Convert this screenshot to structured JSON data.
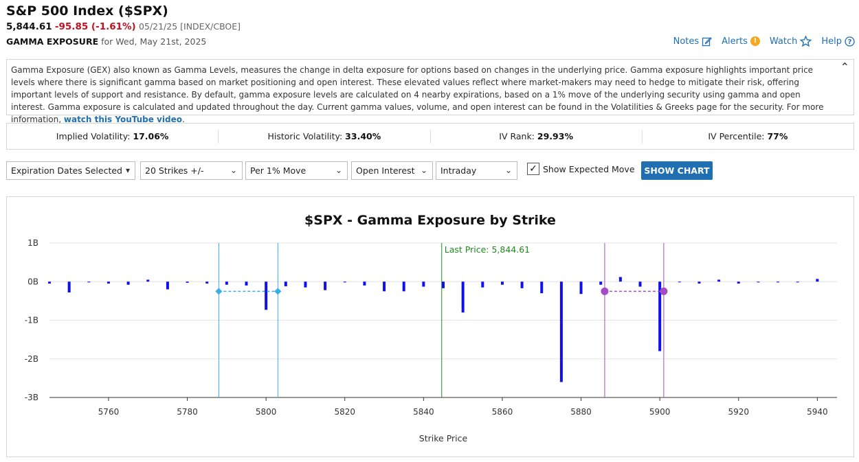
{
  "header": {
    "title": "S&P 500 Index ($SPX)",
    "last": "5,844.61",
    "change": "-95.85 (-1.61%)",
    "meta": "05/21/25 [INDEX/CBOE]",
    "section": "GAMMA EXPOSURE",
    "section_date": "for Wed, May 21st, 2025"
  },
  "links": {
    "notes": "Notes",
    "alerts": "Alerts",
    "watch": "Watch",
    "help": "Help"
  },
  "description": {
    "text": "Gamma Exposure (GEX) also known as Gamma Levels, measures the change in delta exposure for options based on changes in the underlying price. Gamma exposure highlights important price levels where there is significant gamma based on market positioning and open interest. These elevated values reflect where market-makers may need to hedge to mitigate their risk, offering important levels of support and resistance. By default, gamma exposure levels are calculated on 4 nearby expirations, based on a 1% move of the underlying security using gamma and open interest. Gamma exposure is calculated and updated throughout the day. Current gamma values, volume, and open interest can be found in the Volatilities & Greeks page for the security. For more information, ",
    "link": "watch this YouTube video",
    "end": "."
  },
  "stats": {
    "iv_label": "Implied Volatility:",
    "iv": "17.06%",
    "hv_label": "Historic Volatility:",
    "hv": "33.40%",
    "ivr_label": "IV Rank:",
    "ivr": "29.93%",
    "ivp_label": "IV Percentile:",
    "ivp": "77%"
  },
  "controls": {
    "expirations": "Expiration Dates Selected",
    "strikes": "20 Strikes +/-",
    "move": "Per 1% Move",
    "metric": "Open Interest",
    "period": "Intraday",
    "expected_move_label": "Show Expected Move",
    "expected_move_checked": true,
    "show_chart": "SHOW CHART"
  },
  "chart_data": {
    "type": "bar",
    "title": "$SPX - Gamma Exposure by Strike",
    "xlabel": "Strike Price",
    "ylabel": "",
    "xlim": [
      5745,
      5945
    ],
    "ylim": [
      -3,
      1
    ],
    "y_unit": "B",
    "x_ticks": [
      5760,
      5780,
      5800,
      5820,
      5840,
      5860,
      5880,
      5900,
      5920,
      5940
    ],
    "y_ticks": [
      "1B",
      "0B",
      "-1B",
      "-2B",
      "-3B"
    ],
    "y_tick_values": [
      1,
      0,
      -1,
      -2,
      -3
    ],
    "grid": true,
    "bar_color": "#1010ee",
    "strikes": [
      5745,
      5750,
      5755,
      5760,
      5765,
      5770,
      5775,
      5780,
      5785,
      5790,
      5795,
      5800,
      5805,
      5810,
      5815,
      5820,
      5825,
      5830,
      5835,
      5840,
      5845,
      5850,
      5855,
      5860,
      5865,
      5870,
      5875,
      5880,
      5885,
      5890,
      5895,
      5900,
      5905,
      5910,
      5915,
      5920,
      5925,
      5930,
      5935,
      5940
    ],
    "values": [
      -0.05,
      -0.28,
      -0.02,
      -0.05,
      -0.08,
      0.05,
      -0.2,
      -0.03,
      -0.05,
      -0.08,
      -0.1,
      -0.73,
      -0.12,
      -0.15,
      -0.22,
      -0.02,
      -0.1,
      -0.25,
      -0.25,
      -0.13,
      -0.17,
      -0.8,
      -0.15,
      -0.08,
      -0.17,
      -0.3,
      -2.6,
      -0.32,
      -0.08,
      0.12,
      -0.13,
      -1.8,
      0.0,
      -0.05,
      0.05,
      -0.05,
      -0.02,
      -0.02,
      -0.02,
      0.07
    ],
    "last_price": {
      "label": "Last Price: 5,844.61",
      "value": 5844.61,
      "color": "#1e8a1e"
    },
    "expected_moves": [
      {
        "low": 5788,
        "high": 5803,
        "level": -0.25,
        "color": "#38aee8"
      },
      {
        "low": 5886,
        "high": 5901,
        "level": -0.25,
        "color": "#a24bc4"
      }
    ]
  }
}
